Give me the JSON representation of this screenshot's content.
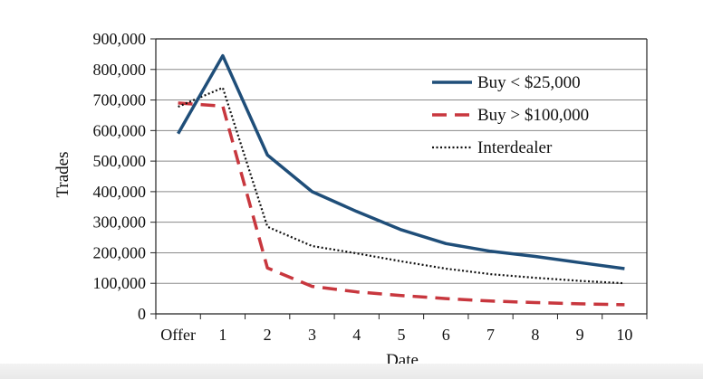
{
  "chart_data": {
    "type": "line",
    "title": "",
    "xlabel": "Date",
    "ylabel": "Trades",
    "categories": [
      "Offer",
      "1",
      "2",
      "3",
      "4",
      "5",
      "6",
      "7",
      "8",
      "9",
      "10"
    ],
    "ylim": [
      0,
      900000
    ],
    "yticks": [
      0,
      100000,
      200000,
      300000,
      400000,
      500000,
      600000,
      700000,
      800000,
      900000
    ],
    "ytick_labels": [
      "0",
      "100,000",
      "200,000",
      "300,000",
      "400,000",
      "500,000",
      "600,000",
      "700,000",
      "800,000",
      "900,000"
    ],
    "grid": "horizontal",
    "legend_position": "top-right",
    "series": [
      {
        "name": "Buy < $25,000",
        "color": "#1f4e79",
        "style": "solid",
        "values": [
          590000,
          845000,
          520000,
          400000,
          335000,
          275000,
          230000,
          205000,
          188000,
          168000,
          148000
        ]
      },
      {
        "name": "Buy > $100,000",
        "color": "#c8373e",
        "style": "dashed",
        "values": [
          690000,
          680000,
          150000,
          90000,
          72000,
          60000,
          50000,
          42000,
          37000,
          33000,
          30000
        ]
      },
      {
        "name": "Interdealer",
        "color": "#111111",
        "style": "dotted",
        "values": [
          678000,
          740000,
          285000,
          222000,
          198000,
          172000,
          148000,
          130000,
          118000,
          108000,
          100000
        ]
      }
    ]
  }
}
